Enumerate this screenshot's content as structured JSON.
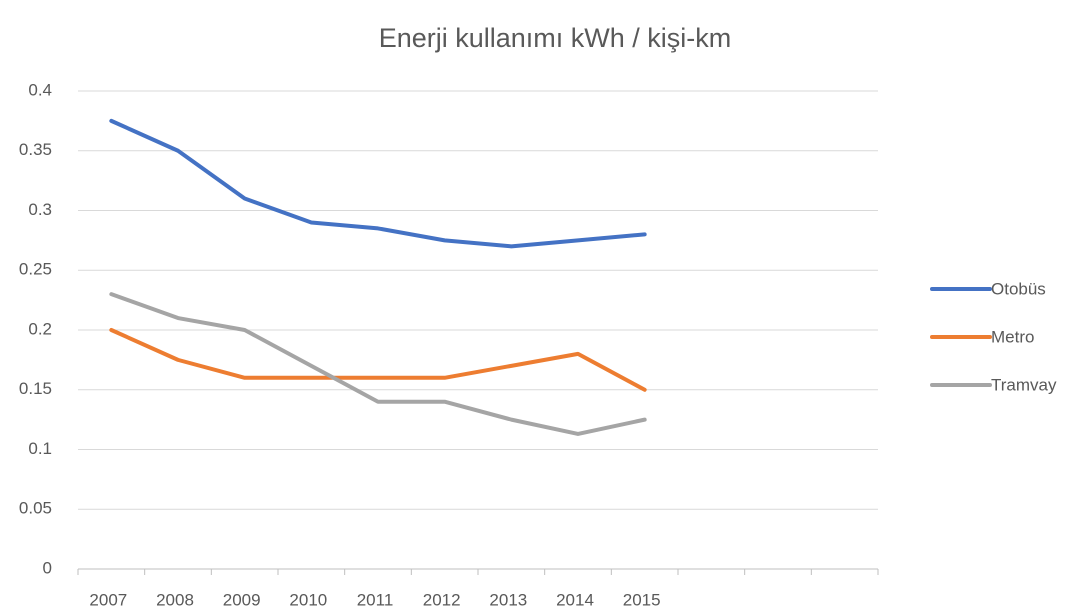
{
  "chart_data": {
    "type": "line",
    "title": "Enerji kullanımı kWh / kişi-km",
    "categories": [
      "2007",
      "2008",
      "2009",
      "2010",
      "2011",
      "2012",
      "2013",
      "2014",
      "2015",
      null,
      null,
      null
    ],
    "series": [
      {
        "name": "Otobüs",
        "color": "#4472c4",
        "values": [
          0.375,
          0.35,
          0.31,
          0.29,
          0.285,
          0.275,
          0.27,
          0.275,
          0.28,
          null,
          null,
          null
        ]
      },
      {
        "name": "Metro",
        "color": "#ed7d31",
        "values": [
          0.2,
          0.175,
          0.16,
          0.16,
          0.16,
          0.16,
          0.17,
          0.18,
          0.15,
          null,
          null,
          null
        ]
      },
      {
        "name": "Tramvay",
        "color": "#a5a5a5",
        "values": [
          0.23,
          0.21,
          0.2,
          0.17,
          0.14,
          0.14,
          0.125,
          0.113,
          0.125,
          null,
          null,
          null
        ]
      }
    ],
    "ylim": [
      0,
      0.4
    ],
    "yticks": [
      0,
      0.05,
      0.1,
      0.15,
      0.2,
      0.25,
      0.3,
      0.35,
      0.4
    ],
    "grid": true,
    "legend": "right"
  }
}
